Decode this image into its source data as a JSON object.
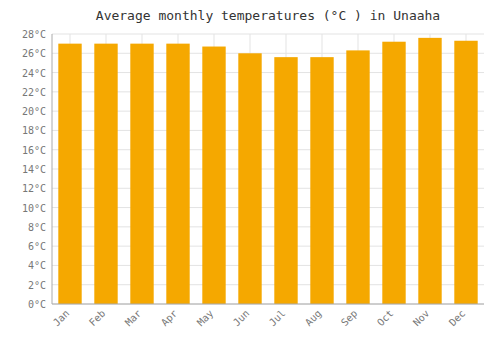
{
  "chart_data": {
    "type": "bar",
    "title": "Average monthly temperatures (°C ) in Unaaha",
    "categories": [
      "Jan",
      "Feb",
      "Mar",
      "Apr",
      "May",
      "Jun",
      "Jul",
      "Aug",
      "Sep",
      "Oct",
      "Nov",
      "Dec"
    ],
    "values": [
      27.0,
      27.0,
      27.0,
      27.0,
      26.7,
      26.0,
      25.6,
      25.6,
      26.3,
      27.2,
      27.6,
      27.3
    ],
    "color": "#F5A800",
    "ylim": [
      0,
      28
    ],
    "yticks": [
      {
        "value": 0,
        "label": "0°C"
      },
      {
        "value": 2,
        "label": "2°C"
      },
      {
        "value": 4,
        "label": "4°C"
      },
      {
        "value": 6,
        "label": "6°C"
      },
      {
        "value": 8,
        "label": "8°C"
      },
      {
        "value": 10,
        "label": "10°C"
      },
      {
        "value": 12,
        "label": "12°C"
      },
      {
        "value": 14,
        "label": "14°C"
      },
      {
        "value": 16,
        "label": "16°C"
      },
      {
        "value": 18,
        "label": "18°C"
      },
      {
        "value": 20,
        "label": "20°C"
      },
      {
        "value": 22,
        "label": "22°C"
      },
      {
        "value": 24,
        "label": "24°C"
      },
      {
        "value": 26,
        "label": "26°C"
      },
      {
        "value": 28,
        "label": "28°C"
      }
    ],
    "grid": true
  }
}
